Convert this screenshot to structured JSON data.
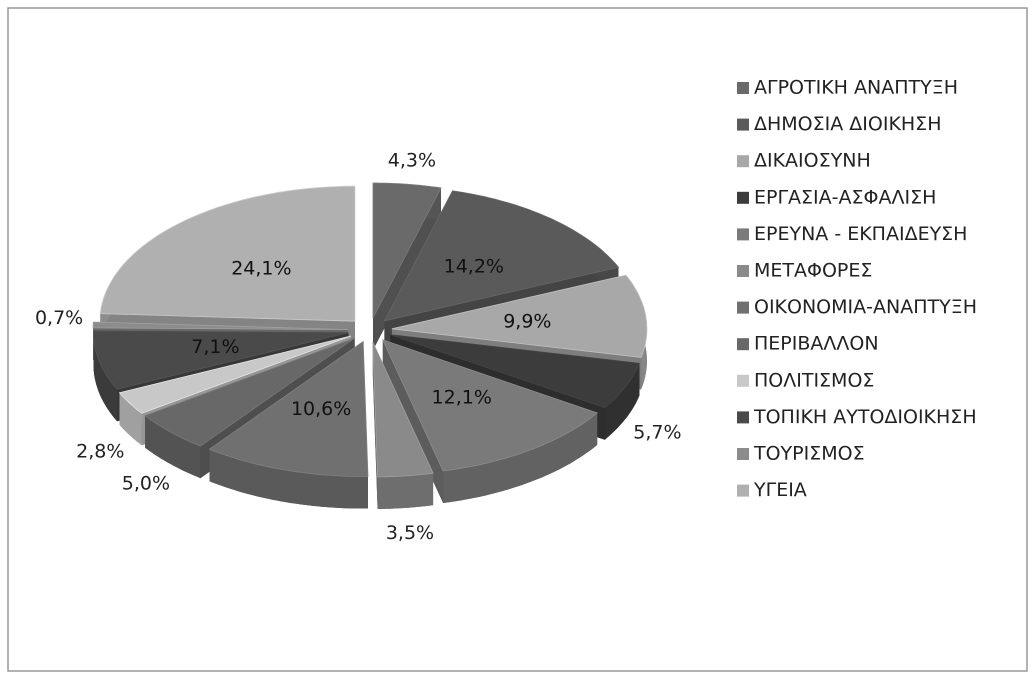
{
  "chart_data": {
    "type": "pie",
    "categories": [
      "ΑΓΡΟΤΙΚΗ ΑΝΑΠΤΥΞΗ",
      "ΔΗΜΟΣΙΑ ΔΙΟΙΚΗΣΗ",
      "ΔΙΚΑΙΟΣΥΝΗ",
      "ΕΡΓΑΣΙΑ-ΑΣΦΑΛΙΣΗ",
      "ΕΡΕΥΝΑ - ΕΚΠΑΙΔΕΥΣΗ",
      "ΜΕΤΑΦΟΡΕΣ",
      "ΟΙΚΟΝΟΜΙΑ-ΑΝΑΠΤΥΞΗ",
      "ΠΕΡΙΒΑΛΛΟΝ",
      "ΠΟΛΙΤΙΣΜΟΣ",
      "ΤΟΠΙΚΗ ΑΥΤΟΔΙΟΙΚΗΣΗ",
      "ΤΟΥΡΙΣΜΟΣ",
      "ΥΓΕΙΑ"
    ],
    "values": [
      4.3,
      14.2,
      9.9,
      5.7,
      12.1,
      3.5,
      10.6,
      5.0,
      2.8,
      7.1,
      0.7,
      24.1
    ],
    "value_labels": [
      "4,3%",
      "14,2%",
      "9,9%",
      "5,7%",
      "12,1%",
      "3,5%",
      "10,6%",
      "5,0%",
      "2,8%",
      "7,1%",
      "0,7%",
      "24,1%"
    ],
    "colors": [
      "#6a6a6a",
      "#5a5a5a",
      "#a8a8a8",
      "#3c3c3c",
      "#7a7a7a",
      "#8a8a8a",
      "#707070",
      "#686868",
      "#c8c8c8",
      "#4a4a4a",
      "#8c8c8c",
      "#b0b0b0"
    ],
    "legend": "right"
  }
}
